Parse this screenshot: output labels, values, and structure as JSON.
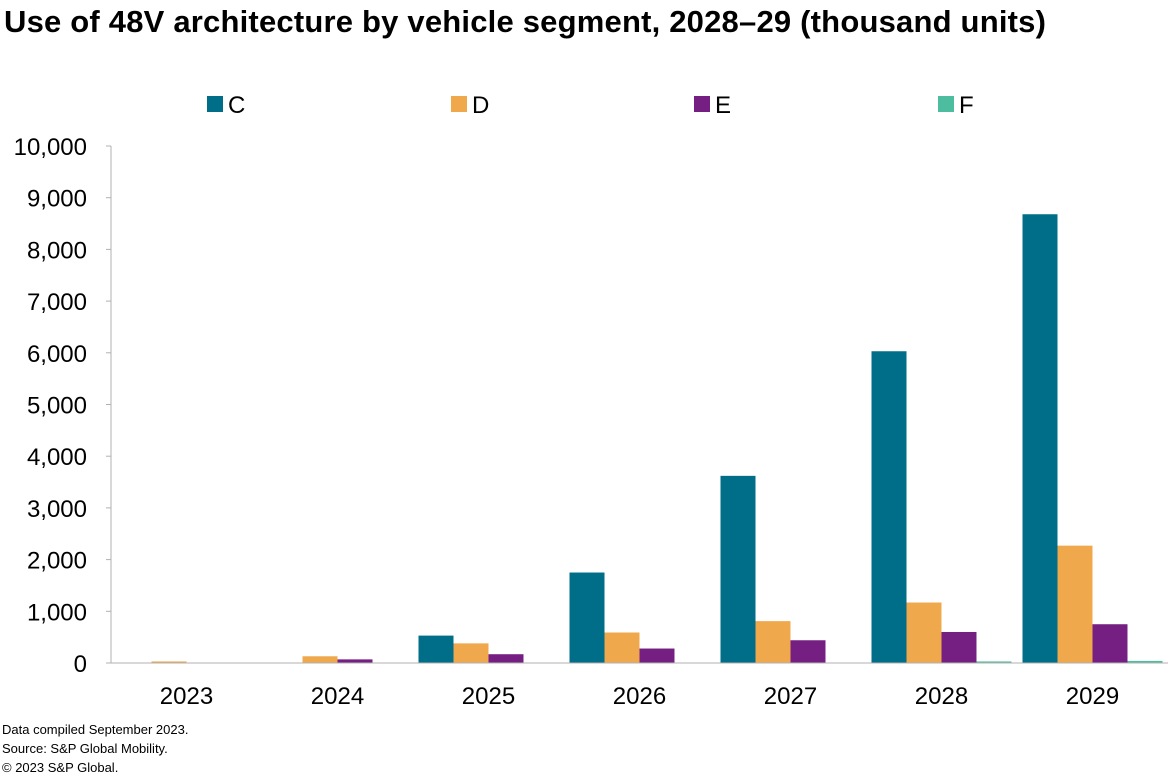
{
  "title": "Use of 48V architecture by vehicle segment, 2028–29 (thousand units)",
  "footnotes": [
    "Data compiled September 2023.",
    "Source: S&P Global Mobility.",
    "© 2023 S&P Global."
  ],
  "colors": {
    "C": "#006D89",
    "D": "#F0A84D",
    "E": "#761F83",
    "F": "#4DBD9F",
    "axis": "#B0B0B0"
  },
  "chart_data": {
    "type": "bar",
    "title": "Use of 48V architecture by vehicle segment, 2028–29 (thousand units)",
    "xlabel": "",
    "ylabel": "",
    "categories": [
      "2023",
      "2024",
      "2025",
      "2026",
      "2027",
      "2028",
      "2029"
    ],
    "ylim": [
      0,
      10000
    ],
    "yticks": [
      0,
      1000,
      2000,
      3000,
      4000,
      5000,
      6000,
      7000,
      8000,
      9000,
      10000
    ],
    "ytick_labels": [
      "0",
      "1,000",
      "2,000",
      "3,000",
      "4,000",
      "5,000",
      "6,000",
      "7,000",
      "8,000",
      "9,000",
      "10,000"
    ],
    "grid": false,
    "legend_position": "top",
    "series": [
      {
        "name": "C",
        "values": [
          0,
          0,
          530,
          1750,
          3620,
          6030,
          8680
        ]
      },
      {
        "name": "D",
        "values": [
          30,
          130,
          380,
          590,
          810,
          1170,
          2270
        ]
      },
      {
        "name": "E",
        "values": [
          0,
          70,
          170,
          280,
          440,
          600,
          750
        ]
      },
      {
        "name": "F",
        "values": [
          0,
          0,
          0,
          0,
          0,
          30,
          40
        ]
      }
    ]
  }
}
